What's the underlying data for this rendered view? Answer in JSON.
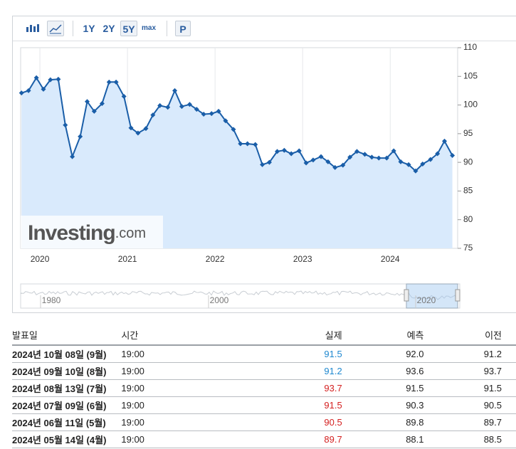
{
  "toolbar": {
    "ranges": [
      "1Y",
      "2Y",
      "5Y",
      "max",
      "P"
    ],
    "selected": "5Y"
  },
  "chart_data": {
    "type": "line",
    "color": "#1a5ea8",
    "fill": "#d9eafc",
    "grid": true,
    "y_axis_side": "right",
    "x": [
      2019.79,
      2019.87,
      2019.96,
      2020.04,
      2020.12,
      2020.21,
      2020.29,
      2020.37,
      2020.46,
      2020.54,
      2020.62,
      2020.71,
      2020.79,
      2020.87,
      2020.96,
      2021.04,
      2021.12,
      2021.21,
      2021.29,
      2021.37,
      2021.46,
      2021.54,
      2021.62,
      2021.71,
      2021.79,
      2021.87,
      2021.96,
      2022.04,
      2022.12,
      2022.21,
      2022.29,
      2022.37,
      2022.46,
      2022.54,
      2022.62,
      2022.71,
      2022.79,
      2022.87,
      2022.96,
      2023.04,
      2023.12,
      2023.21,
      2023.29,
      2023.37,
      2023.46,
      2023.54,
      2023.62,
      2023.71,
      2023.79,
      2023.87,
      2023.96,
      2024.04,
      2024.12,
      2024.21,
      2024.29,
      2024.37,
      2024.46,
      2024.54,
      2024.62,
      2024.71
    ],
    "values": [
      102.1,
      102.5,
      104.75,
      102.75,
      104.4,
      104.5,
      96.5,
      91,
      94.5,
      100.6,
      98.9,
      100.25,
      104,
      104,
      101.5,
      96,
      95.1,
      95.9,
      98.25,
      99.9,
      99.6,
      102.5,
      99.75,
      100.1,
      99.25,
      98.4,
      98.5,
      98.9,
      97.25,
      95.75,
      93.25,
      93.25,
      93.1,
      89.6,
      90,
      91.9,
      92.1,
      91.5,
      92,
      89.9,
      90.4,
      91,
      90.1,
      89.1,
      89.5,
      90.9,
      91.9,
      91.4,
      90.9,
      90.75,
      90.75,
      92,
      90.1,
      89.6,
      88.5,
      89.7,
      90.5,
      91.5,
      93.7,
      91.2
    ],
    "xlim": [
      2019.78,
      2024.77
    ],
    "xticks": [
      2020,
      2021,
      2022,
      2023,
      2024
    ],
    "ylim": [
      75,
      110
    ],
    "yticks": [
      75,
      80,
      85,
      90,
      95,
      100,
      105,
      110
    ],
    "watermark": {
      "brand": "Investing",
      "suffix": ".com"
    },
    "navigator": {
      "labels": [
        "1980",
        "2000",
        "2020"
      ]
    }
  },
  "table": {
    "headers": [
      "발표일",
      "시간",
      "실제",
      "예측",
      "이전"
    ],
    "rows": [
      {
        "cells": [
          "2024년 10월 08일 (9월)",
          "19:00",
          "91.5",
          "92.0",
          "91.2"
        ],
        "actual_color": "#1e88d0"
      },
      {
        "cells": [
          "2024년 09월 10일 (8월)",
          "19:00",
          "91.2",
          "93.6",
          "93.7"
        ],
        "actual_color": "#1e88d0"
      },
      {
        "cells": [
          "2024년 08월 13일 (7월)",
          "19:00",
          "93.7",
          "91.5",
          "91.5"
        ],
        "actual_color": "#d42020"
      },
      {
        "cells": [
          "2024년 07월 09일 (6월)",
          "19:00",
          "91.5",
          "90.3",
          "90.5"
        ],
        "actual_color": "#d42020"
      },
      {
        "cells": [
          "2024년 06월 11일 (5월)",
          "19:00",
          "90.5",
          "89.8",
          "89.7"
        ],
        "actual_color": "#d42020"
      },
      {
        "cells": [
          "2024년 05월 14일 (4월)",
          "19:00",
          "89.7",
          "88.1",
          "88.5"
        ],
        "actual_color": "#d42020"
      }
    ]
  }
}
